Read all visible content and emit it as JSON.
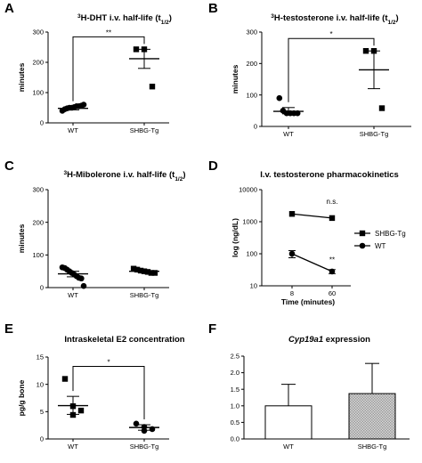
{
  "figure_label": "",
  "chart_data": [
    {
      "panel": "A",
      "type": "scatter",
      "title_sup": "3",
      "title": "H-DHT i.v. half-life (t",
      "title_sub": "1/2",
      "title_end": ")",
      "ylabel": "minutes",
      "ylim": [
        0,
        300
      ],
      "yticks": [
        "0",
        "100",
        "200",
        "300"
      ],
      "categories": [
        "WT",
        "SHBG-Tg"
      ],
      "series": [
        {
          "group": "WT",
          "points": [
            40,
            45,
            48,
            50,
            50,
            52,
            55,
            55,
            57,
            60
          ],
          "mean": 48,
          "sem_low": 43,
          "sem_high": 54,
          "marker": "circle"
        },
        {
          "group": "SHBG-Tg",
          "points": [
            243,
            243,
            120
          ],
          "mean": 212,
          "sem_low": 180,
          "sem_high": 243,
          "marker": "square"
        }
      ],
      "significance": "**"
    },
    {
      "panel": "B",
      "type": "scatter",
      "title_sup": "3",
      "title": "H-testosterone i.v. half-life (t",
      "title_sub": "1/2",
      "title_end": ")",
      "ylabel": "minutes",
      "ylim": [
        0,
        300
      ],
      "yticks": [
        "0",
        "100",
        "200",
        "300"
      ],
      "categories": [
        "WT",
        "SHBG-Tg"
      ],
      "series": [
        {
          "group": "WT",
          "points": [
            90,
            50,
            42,
            42,
            42,
            42
          ],
          "mean": 48,
          "sem_low": 40,
          "sem_high": 60,
          "marker": "circle"
        },
        {
          "group": "SHBG-Tg",
          "points": [
            240,
            240,
            58
          ],
          "mean": 180,
          "sem_low": 120,
          "sem_high": 240,
          "marker": "square"
        }
      ],
      "significance": "*"
    },
    {
      "panel": "C",
      "type": "scatter",
      "title_sup": "3",
      "title": "H-Mibolerone i.v. half-life (t",
      "title_sub": "1/2",
      "title_end": ")",
      "ylabel": "minutes",
      "ylim": [
        0,
        300
      ],
      "yticks": [
        "0",
        "100",
        "200",
        "300"
      ],
      "categories": [
        "WT",
        "SHBG-Tg"
      ],
      "series": [
        {
          "group": "WT",
          "points": [
            62,
            60,
            55,
            50,
            45,
            40,
            35,
            30,
            28,
            5
          ],
          "mean": 42,
          "sem_low": 33,
          "sem_high": 50,
          "marker": "circle"
        },
        {
          "group": "SHBG-Tg",
          "points": [
            58,
            55,
            52,
            50,
            48,
            45,
            45
          ],
          "mean": 50,
          "sem_low": 47,
          "sem_high": 54,
          "marker": "square"
        }
      ],
      "significance": ""
    },
    {
      "panel": "D",
      "type": "line",
      "title": "I.v. testosterone pharmacokinetics",
      "ylabel": "log (ng/dL)",
      "xlabel": "Time (minutes)",
      "log_y": true,
      "ylim": [
        10,
        10000
      ],
      "yticks": [
        "10",
        "100",
        "1000",
        "10000"
      ],
      "x": [
        8,
        60
      ],
      "xticks": [
        "8",
        "60"
      ],
      "series": [
        {
          "name": "SHBG-Tg",
          "values": [
            1750,
            1300
          ],
          "marker": "square"
        },
        {
          "name": "WT",
          "values": [
            100,
            28
          ],
          "marker": "circle",
          "err_low": [
            75,
            24
          ],
          "err_high": [
            125,
            32
          ]
        }
      ],
      "annotations": [
        {
          "text": "n.s.",
          "x": 60,
          "y": 3600
        },
        {
          "text": "**",
          "x": 60,
          "y": 55
        }
      ]
    },
    {
      "panel": "E",
      "type": "scatter",
      "title": "Intraskeletal E2 concentration",
      "ylabel": "pg/g bone",
      "ylim": [
        0,
        15
      ],
      "yticks": [
        "0",
        "5",
        "10",
        "15"
      ],
      "categories": [
        "WT",
        "SHBG-Tg"
      ],
      "series": [
        {
          "group": "WT",
          "points": [
            11,
            6,
            5.2,
            4.4
          ],
          "mean": 6.1,
          "sem_low": 4.5,
          "sem_high": 7.8,
          "marker": "square"
        },
        {
          "group": "SHBG-Tg",
          "points": [
            2.8,
            2.2,
            1.8,
            1.5
          ],
          "mean": 2.1,
          "sem_low": 1.6,
          "sem_high": 2.6,
          "marker": "circle"
        }
      ],
      "significance": "*"
    },
    {
      "panel": "F",
      "type": "bar",
      "title_italic": "Cyp19a1",
      "title": " expression",
      "ylim": [
        0,
        2.5
      ],
      "yticks": [
        "0.0",
        "0.5",
        "1.0",
        "1.5",
        "2.0",
        "2.5"
      ],
      "categories": [
        "WT",
        "SHBG-Tg"
      ],
      "values": [
        1.0,
        1.37
      ],
      "err_high": [
        1.65,
        2.28
      ]
    }
  ]
}
